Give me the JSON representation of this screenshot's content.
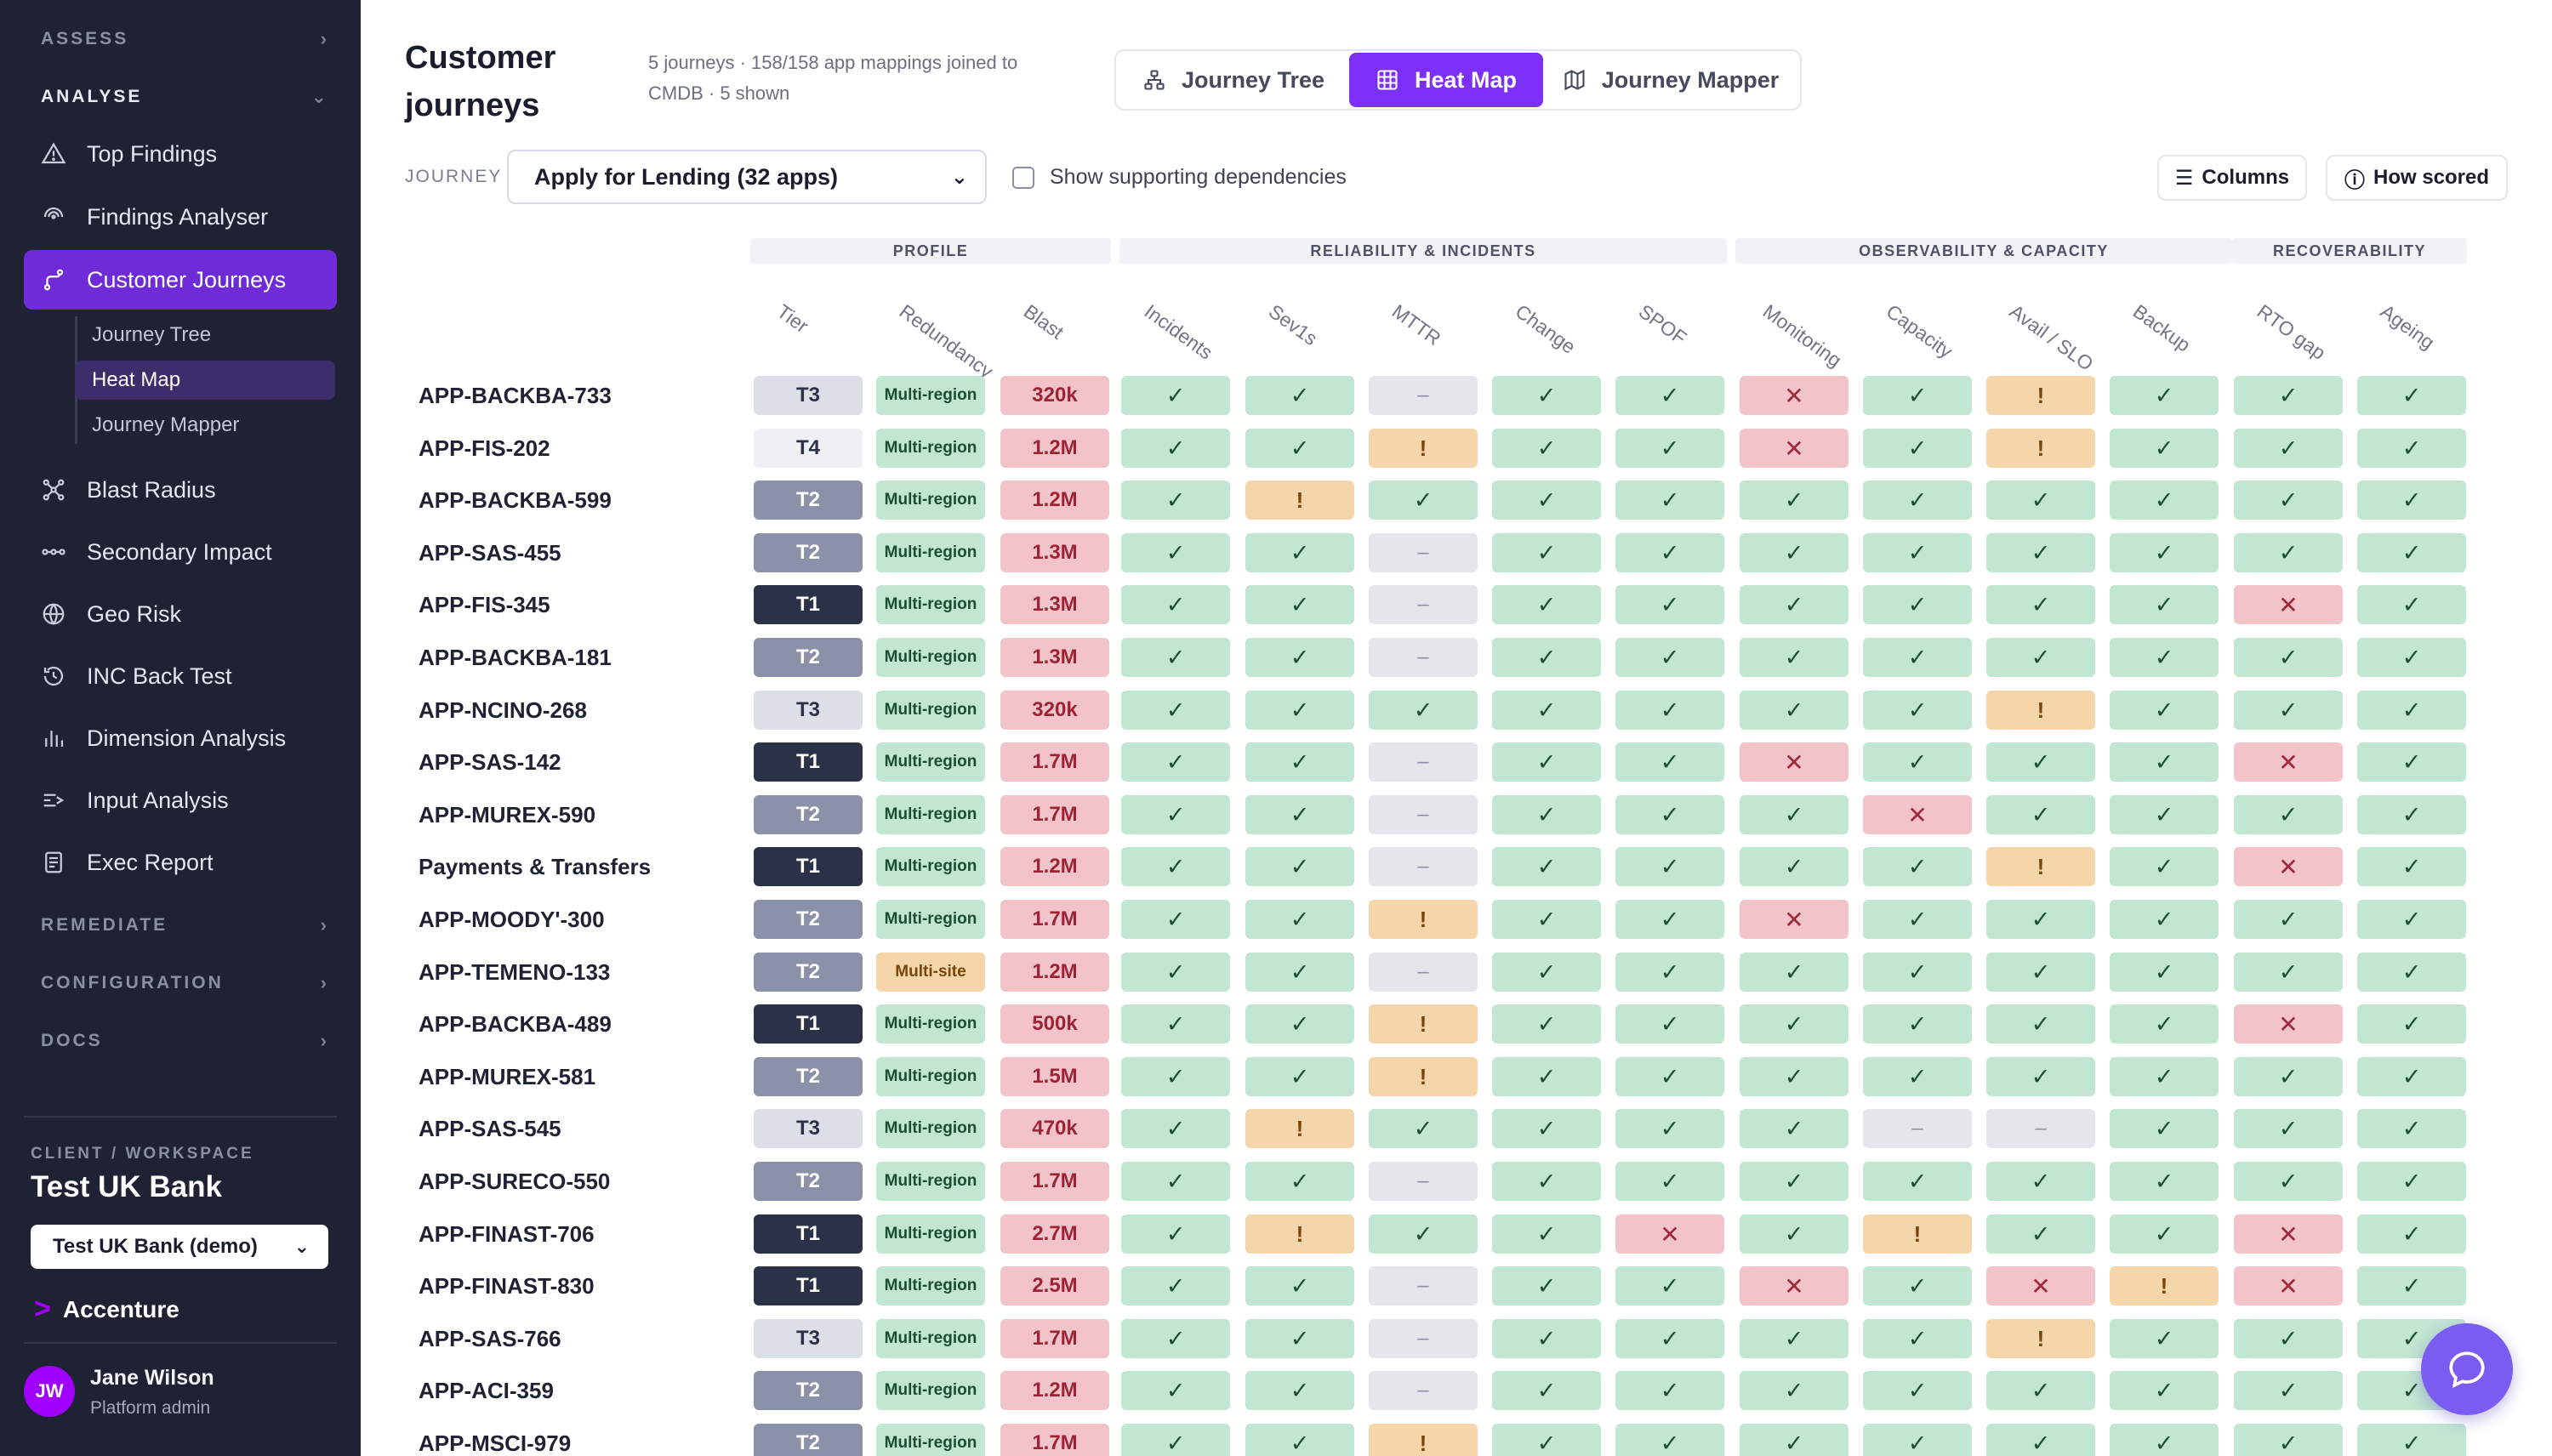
{
  "sidebar": {
    "sections": {
      "assess": "ASSESS",
      "analyse": "ANALYSE",
      "remediate": "REMEDIATE",
      "configuration": "CONFIGURATION",
      "docs": "DOCS"
    },
    "items": [
      {
        "label": "Top Findings",
        "icon": "warning-triangle-icon"
      },
      {
        "label": "Findings Analyser",
        "icon": "radar-icon"
      },
      {
        "label": "Customer Journeys",
        "icon": "route-icon",
        "active": true
      },
      {
        "label": "Blast Radius",
        "icon": "network-icon"
      },
      {
        "label": "Secondary Impact",
        "icon": "dots-chain-icon"
      },
      {
        "label": "Geo Risk",
        "icon": "globe-icon"
      },
      {
        "label": "INC Back Test",
        "icon": "history-icon"
      },
      {
        "label": "Dimension Analysis",
        "icon": "bar-chart-icon"
      },
      {
        "label": "Input Analysis",
        "icon": "input-icon"
      },
      {
        "label": "Exec Report",
        "icon": "report-icon"
      }
    ],
    "sub_items": [
      "Journey Tree",
      "Heat Map",
      "Journey Mapper"
    ],
    "workspace": {
      "label": "CLIENT / WORKSPACE",
      "name": "Test UK Bank",
      "select_value": "Test UK Bank (demo)"
    },
    "brand": "Accenture",
    "user": {
      "initials": "JW",
      "name": "Jane Wilson",
      "role": "Platform admin"
    }
  },
  "header": {
    "title": "Customer journeys",
    "subtitle": "5 journeys · 158/158 app mappings joined to CMDB · 5 shown",
    "views": [
      "Journey Tree",
      "Heat Map",
      "Journey Mapper"
    ],
    "active_view": "Heat Map"
  },
  "toolbar": {
    "journey_label": "JOURNEY",
    "journey_value": "Apply for Lending (32 apps)",
    "show_deps_label": "Show supporting dependencies",
    "show_deps_checked": false,
    "columns_button": "Columns",
    "how_scored_button": "How scored"
  },
  "groups": [
    "PROFILE",
    "RELIABILITY & INCIDENTS",
    "OBSERVABILITY & CAPACITY",
    "RECOVERABILITY"
  ],
  "columns": [
    "Tier",
    "Redundancy",
    "Blast",
    "Incidents",
    "Sev1s",
    "MTTR",
    "Change",
    "SPOF",
    "Monitoring",
    "Capacity",
    "Avail / SLO",
    "Backup",
    "RTO gap",
    "Ageing"
  ],
  "legend_symbols": {
    "ok": "✓",
    "warn": "!",
    "bad": "✕",
    "na": "–"
  },
  "colors": {
    "accent": "#7b2ff7",
    "sidebar_bg": "#1e2233",
    "ok": "#c1e6d2",
    "warn": "#f5d6ab",
    "bad": "#f2c4c9",
    "na": "#e4e6ec",
    "tier1": "#2b3147",
    "tier2": "#8b91a9",
    "tier3": "#dcdfe8"
  },
  "rows": [
    {
      "name": "APP-BACKBA-733",
      "tier": "T3",
      "redundancy": "Multi-region",
      "blast": "320k",
      "s": "ok,ok,na,ok,ok,bad,ok,warn,ok,ok,ok"
    },
    {
      "name": "APP-FIS-202",
      "tier": "T4",
      "redundancy": "Multi-region",
      "blast": "1.2M",
      "s": "ok,ok,warn,ok,ok,bad,ok,warn,ok,ok,ok"
    },
    {
      "name": "APP-BACKBA-599",
      "tier": "T2",
      "redundancy": "Multi-region",
      "blast": "1.2M",
      "s": "ok,warn,ok,ok,ok,ok,ok,ok,ok,ok,ok"
    },
    {
      "name": "APP-SAS-455",
      "tier": "T2",
      "redundancy": "Multi-region",
      "blast": "1.3M",
      "s": "ok,ok,na,ok,ok,ok,ok,ok,ok,ok,ok"
    },
    {
      "name": "APP-FIS-345",
      "tier": "T1",
      "redundancy": "Multi-region",
      "blast": "1.3M",
      "s": "ok,ok,na,ok,ok,ok,ok,ok,ok,bad,ok"
    },
    {
      "name": "APP-BACKBA-181",
      "tier": "T2",
      "redundancy": "Multi-region",
      "blast": "1.3M",
      "s": "ok,ok,na,ok,ok,ok,ok,ok,ok,ok,ok"
    },
    {
      "name": "APP-NCINO-268",
      "tier": "T3",
      "redundancy": "Multi-region",
      "blast": "320k",
      "s": "ok,ok,ok,ok,ok,ok,ok,warn,ok,ok,ok"
    },
    {
      "name": "APP-SAS-142",
      "tier": "T1",
      "redundancy": "Multi-region",
      "blast": "1.7M",
      "s": "ok,ok,na,ok,ok,bad,ok,ok,ok,bad,ok"
    },
    {
      "name": "APP-MUREX-590",
      "tier": "T2",
      "redundancy": "Multi-region",
      "blast": "1.7M",
      "s": "ok,ok,na,ok,ok,ok,bad,ok,ok,ok,ok"
    },
    {
      "name": "Payments & Transfers",
      "tier": "T1",
      "redundancy": "Multi-region",
      "blast": "1.2M",
      "s": "ok,ok,na,ok,ok,ok,ok,warn,ok,bad,ok"
    },
    {
      "name": "APP-MOODY'-300",
      "tier": "T2",
      "redundancy": "Multi-region",
      "blast": "1.7M",
      "s": "ok,ok,warn,ok,ok,bad,ok,ok,ok,ok,ok"
    },
    {
      "name": "APP-TEMENO-133",
      "tier": "T2",
      "redundancy": "Multi-site",
      "blast": "1.2M",
      "s": "ok,ok,na,ok,ok,ok,ok,ok,ok,ok,ok"
    },
    {
      "name": "APP-BACKBA-489",
      "tier": "T1",
      "redundancy": "Multi-region",
      "blast": "500k",
      "s": "ok,ok,warn,ok,ok,ok,ok,ok,ok,bad,ok"
    },
    {
      "name": "APP-MUREX-581",
      "tier": "T2",
      "redundancy": "Multi-region",
      "blast": "1.5M",
      "s": "ok,ok,warn,ok,ok,ok,ok,ok,ok,ok,ok"
    },
    {
      "name": "APP-SAS-545",
      "tier": "T3",
      "redundancy": "Multi-region",
      "blast": "470k",
      "s": "ok,warn,ok,ok,ok,ok,na,na,ok,ok,ok"
    },
    {
      "name": "APP-SURECO-550",
      "tier": "T2",
      "redundancy": "Multi-region",
      "blast": "1.7M",
      "s": "ok,ok,na,ok,ok,ok,ok,ok,ok,ok,ok"
    },
    {
      "name": "APP-FINAST-706",
      "tier": "T1",
      "redundancy": "Multi-region",
      "blast": "2.7M",
      "s": "ok,warn,ok,ok,bad,ok,warn,ok,ok,bad,ok"
    },
    {
      "name": "APP-FINAST-830",
      "tier": "T1",
      "redundancy": "Multi-region",
      "blast": "2.5M",
      "s": "ok,ok,na,ok,ok,bad,ok,bad,warn,bad,ok"
    },
    {
      "name": "APP-SAS-766",
      "tier": "T3",
      "redundancy": "Multi-region",
      "blast": "1.7M",
      "s": "ok,ok,na,ok,ok,ok,ok,warn,ok,ok,ok"
    },
    {
      "name": "APP-ACI-359",
      "tier": "T2",
      "redundancy": "Multi-region",
      "blast": "1.2M",
      "s": "ok,ok,na,ok,ok,ok,ok,ok,ok,ok,ok"
    },
    {
      "name": "APP-MSCI-979",
      "tier": "T2",
      "redundancy": "Multi-region",
      "blast": "1.7M",
      "s": "ok,ok,warn,ok,ok,ok,ok,ok,ok,ok,ok"
    }
  ]
}
